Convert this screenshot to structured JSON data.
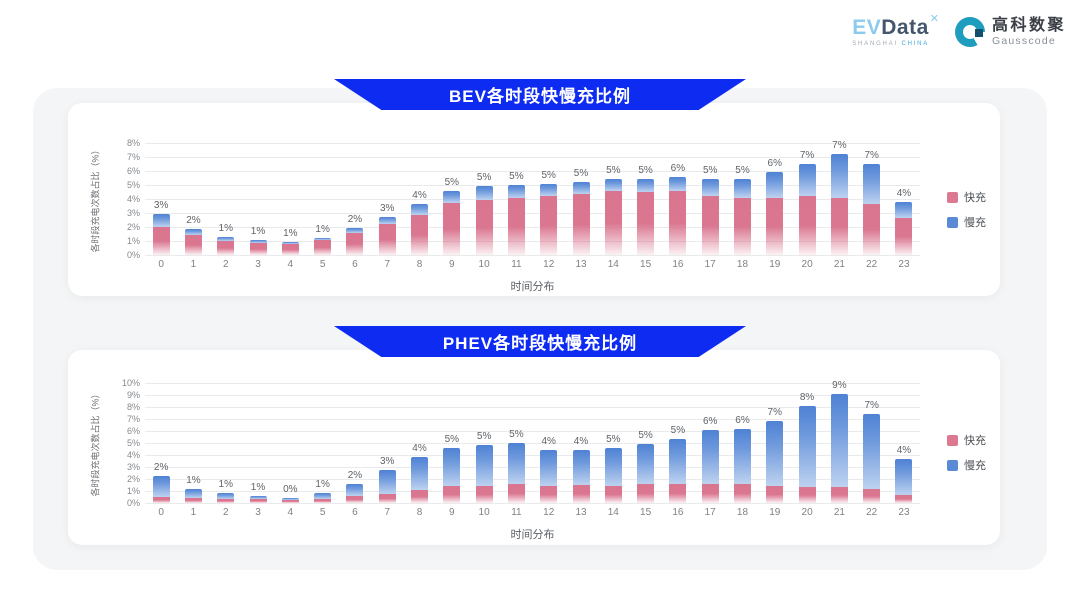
{
  "header": {
    "evdata": {
      "ev": "EV",
      "data": "Data",
      "sup": "✕",
      "sub1": "SHANGHAI",
      "sub2": "CHINA"
    },
    "gausscode": {
      "cn": "高科数聚",
      "en": "Gausscode"
    }
  },
  "chart_data": [
    {
      "type": "bar",
      "stacked": true,
      "title": "BEV各时段快慢充比例",
      "xlabel": "时间分布",
      "ylabel": "各时段充电次数占比（%）",
      "ylim": [
        0,
        8
      ],
      "yticks": [
        "0%",
        "1%",
        "2%",
        "3%",
        "4%",
        "5%",
        "6%",
        "7%",
        "8%"
      ],
      "grid": true,
      "legend_position": "right",
      "categories": [
        "0",
        "1",
        "2",
        "3",
        "4",
        "5",
        "6",
        "7",
        "8",
        "9",
        "10",
        "11",
        "12",
        "13",
        "14",
        "15",
        "16",
        "17",
        "18",
        "19",
        "20",
        "21",
        "22",
        "23"
      ],
      "total_labels": [
        "3%",
        "2%",
        "1%",
        "1%",
        "1%",
        "1%",
        "2%",
        "3%",
        "4%",
        "5%",
        "5%",
        "5%",
        "5%",
        "5%",
        "5%",
        "5%",
        "6%",
        "5%",
        "5%",
        "6%",
        "7%",
        "7%",
        "7%",
        "4%"
      ],
      "series": [
        {
          "name": "快充",
          "color": "#DC7890",
          "values": [
            2.0,
            1.4,
            1.0,
            0.85,
            0.8,
            1.05,
            1.6,
            2.2,
            2.85,
            3.7,
            3.95,
            4.05,
            4.25,
            4.35,
            4.55,
            4.5,
            4.55,
            4.2,
            4.1,
            4.1,
            4.2,
            4.05,
            3.65,
            2.65
          ]
        },
        {
          "name": "慢充",
          "color": "#5A8AD6",
          "values": [
            0.95,
            0.45,
            0.3,
            0.25,
            0.15,
            0.15,
            0.3,
            0.5,
            0.8,
            0.85,
            0.95,
            0.95,
            0.85,
            0.85,
            0.85,
            0.9,
            1.0,
            1.25,
            1.35,
            1.85,
            2.3,
            3.2,
            2.85,
            1.15
          ]
        }
      ]
    },
    {
      "type": "bar",
      "stacked": true,
      "title": "PHEV各时段快慢充比例",
      "xlabel": "时间分布",
      "ylabel": "各时段充电次数占比（%）",
      "ylim": [
        0,
        10
      ],
      "yticks": [
        "0%",
        "1%",
        "2%",
        "3%",
        "4%",
        "5%",
        "6%",
        "7%",
        "8%",
        "9%",
        "10%"
      ],
      "grid": true,
      "legend_position": "right",
      "categories": [
        "0",
        "1",
        "2",
        "3",
        "4",
        "5",
        "6",
        "7",
        "8",
        "9",
        "10",
        "11",
        "12",
        "13",
        "14",
        "15",
        "16",
        "17",
        "18",
        "19",
        "20",
        "21",
        "22",
        "23"
      ],
      "total_labels": [
        "2%",
        "1%",
        "1%",
        "1%",
        "0%",
        "1%",
        "2%",
        "3%",
        "4%",
        "5%",
        "5%",
        "5%",
        "4%",
        "4%",
        "5%",
        "5%",
        "5%",
        "6%",
        "6%",
        "7%",
        "8%",
        "9%",
        "7%",
        "4%"
      ],
      "series": [
        {
          "name": "快充",
          "color": "#DC7890",
          "values": [
            0.5,
            0.4,
            0.3,
            0.3,
            0.25,
            0.3,
            0.6,
            0.75,
            1.1,
            1.4,
            1.45,
            1.55,
            1.45,
            1.5,
            1.45,
            1.6,
            1.55,
            1.55,
            1.55,
            1.45,
            1.35,
            1.3,
            1.15,
            0.65
          ]
        },
        {
          "name": "慢充",
          "color": "#5A8AD6",
          "values": [
            1.75,
            0.8,
            0.5,
            0.3,
            0.2,
            0.55,
            0.95,
            2.0,
            2.75,
            3.2,
            3.4,
            3.45,
            2.95,
            2.95,
            3.15,
            3.35,
            3.8,
            4.5,
            4.65,
            5.35,
            6.75,
            7.8,
            6.25,
            3.05
          ]
        }
      ]
    }
  ],
  "colors": {
    "banner_blue": "#0E2BF2",
    "fast_pink": "#DC7890",
    "slow_blue": "#5A8AD6",
    "container_bg": "#f4f5f6"
  }
}
